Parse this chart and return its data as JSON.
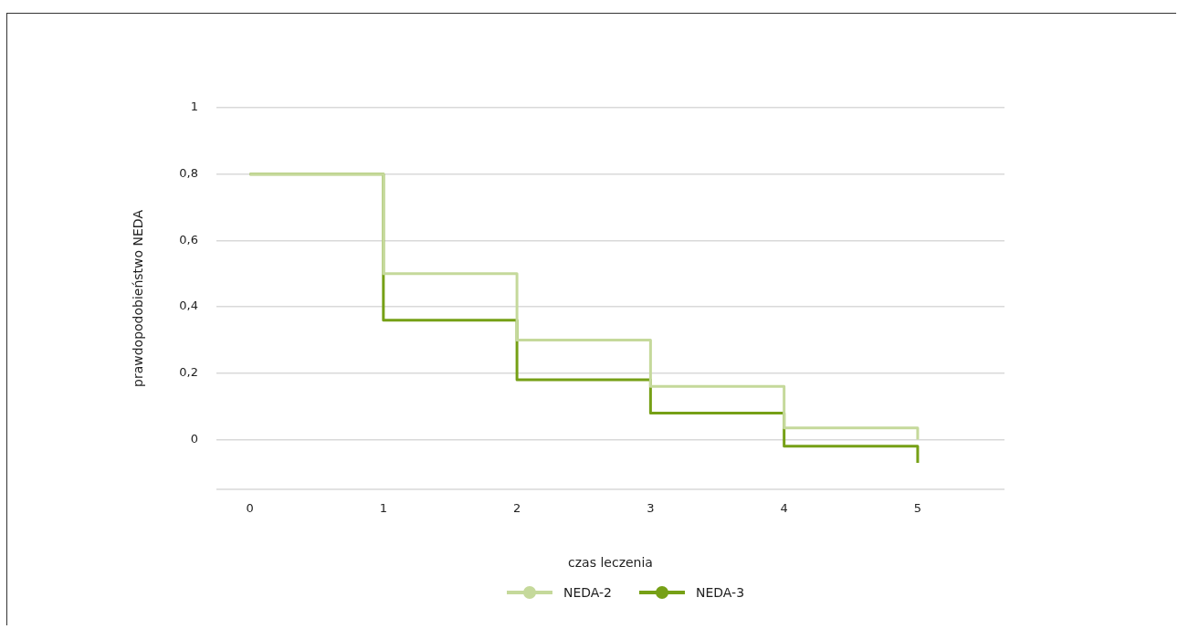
{
  "chart_data": {
    "type": "step",
    "xlabel": "czas leczenia",
    "ylabel": "prawdopodobieństwo NEDA",
    "x": [
      0,
      1,
      2,
      3,
      4,
      5
    ],
    "series": [
      {
        "name": "NEDA-2",
        "color": "#c5d99b",
        "values": [
          0.8,
          0.5,
          0.3,
          0.16,
          0.035,
          0.0
        ]
      },
      {
        "name": "NEDA-3",
        "color": "#76a016",
        "values": [
          0.8,
          0.36,
          0.18,
          0.08,
          -0.02,
          -0.07
        ]
      }
    ],
    "xlim": [
      -0.25,
      5.65
    ],
    "xticks": [
      0,
      1,
      2,
      3,
      4,
      5
    ],
    "ylim": [
      -0.15,
      1
    ],
    "yticks": [
      {
        "value": 0,
        "label": "0"
      },
      {
        "value": 0.2,
        "label": "0,2"
      },
      {
        "value": 0.4,
        "label": "0,4"
      },
      {
        "value": 0.6,
        "label": "0,6"
      },
      {
        "value": 0.8,
        "label": "0,8"
      },
      {
        "value": 1,
        "label": "1"
      }
    ],
    "grid": "y",
    "legend": "bottom",
    "marker": "none",
    "line_style": "solid"
  }
}
